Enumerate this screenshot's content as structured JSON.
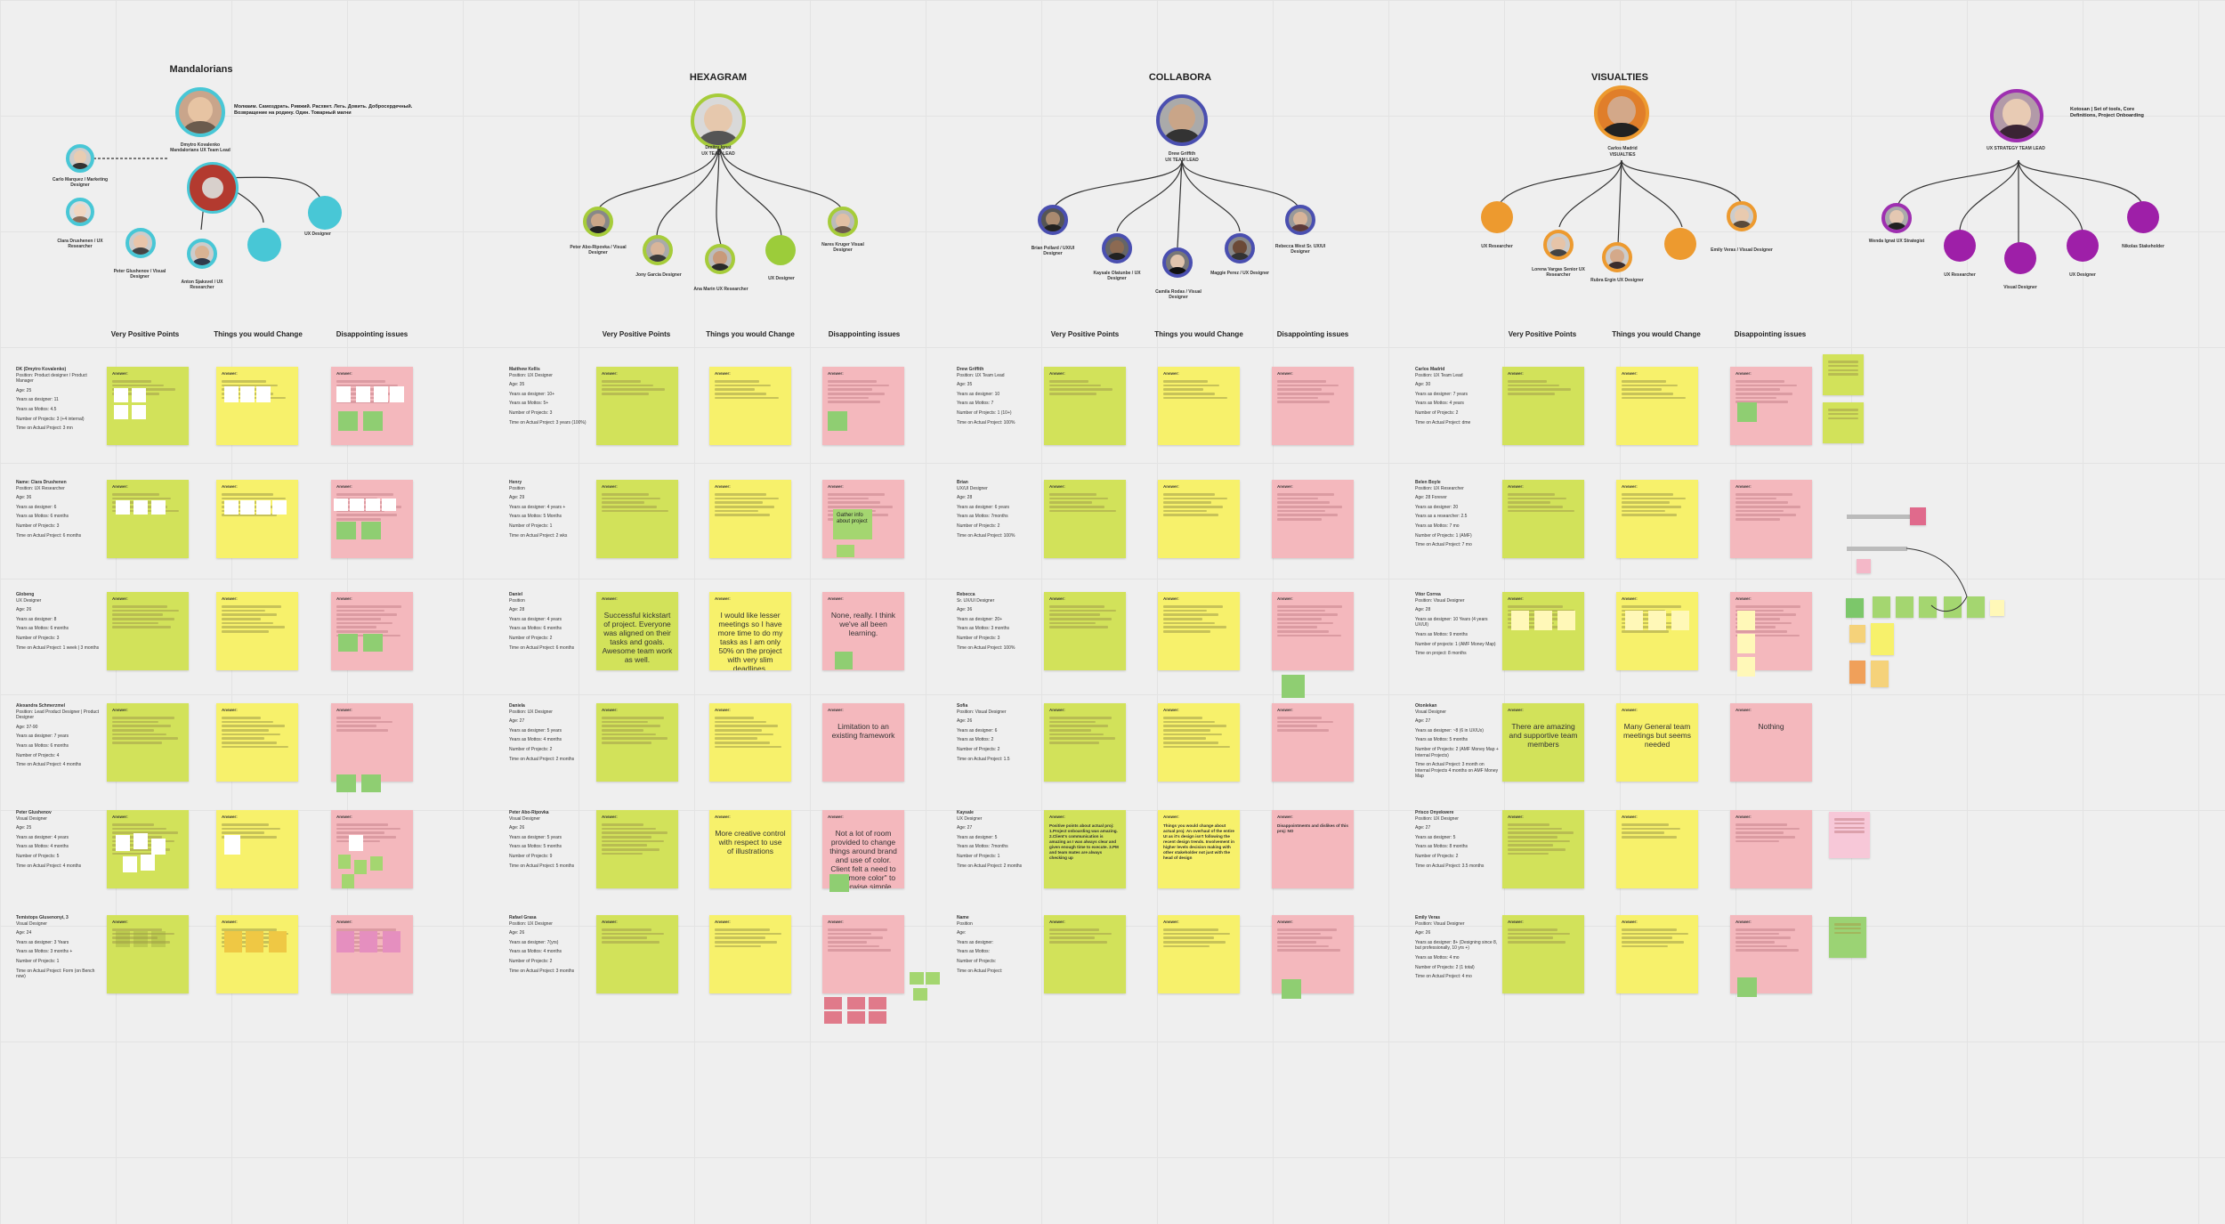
{
  "teams": [
    {
      "name": "Mandalorians",
      "lead_quote": "Молкаим. Самоздрать. Ривжий. Расхвет. Легь. Довить. Добросердечный. Возвращение на родину. Один. Товарный магни"
    },
    {
      "name": "HEXAGRAM",
      "lead": "Dmitry Ignat",
      "lead_role": "UX TEAM LEAD"
    },
    {
      "name": "COLLABORA",
      "lead": "Drew Griffith",
      "lead_role": "UX TEAM LEAD"
    },
    {
      "name": "VISUALTIES",
      "lead": "Carlos Madrid",
      "lead_role": "VISUALTIES"
    },
    {
      "name": "",
      "lead": "",
      "lead_role": "UX STRATEGY TEAM LEAD",
      "note": "Kotosan | Set of tools, Core Definitions, Project Onboarding"
    }
  ],
  "members": {
    "mandalorians": [
      "Dmytro Kovalenko Mandalorians UX Team Lead",
      "Carlo Marquez / Marketing Designer",
      "Clara Drushenen / UX Researcher",
      "Peter Glushenov / Visual Designer",
      "Anton Sjaksvel / UX Researcher",
      "UX Designer"
    ],
    "hexagram": [
      "Peter Abo-Ripovka / Visual Designer",
      "Jony Garcia Designer",
      "Ana Marin UX Researcher",
      "UX Designer",
      "Nares Kruger Visual Designer"
    ],
    "collabora": [
      "Brian Pollard / UX/UI Designer",
      "Kaysale Olatunbe / UX Designer",
      "Camila Rodas / Visual Designer",
      "Maggie Perez / UX Designer",
      "Rebecca West Sr. UX/UI Designer"
    ],
    "visualties": [
      "UX Researcher",
      "Lorena Vargas Senior UX Researcher",
      "Rubra Ergin UX Designer",
      "Emily Veras / Visual Designer"
    ],
    "strategy": [
      "Wenda Ignat UX Strategist",
      "UX Researcher",
      "Visual Designer",
      "UX Designer",
      "Nikolas Stakeholder"
    ]
  },
  "column_headers": [
    "Very Positive Points",
    "Things you would Change",
    "Disappointing issues"
  ],
  "answer_label": "Answer:",
  "people": {
    "mandalorians": [
      {
        "name": "DK (Dmytro Kovalenko)",
        "lines": [
          "Position: Product designer / Product Manager",
          "Age: 25",
          "Years as designer: 11",
          "Years as Mottos: 4.5",
          "Number of Projects: 3 (+4 internal)",
          "Time on Actual Project: 3 mn"
        ]
      },
      {
        "name": "Name: Clara Drushenen",
        "lines": [
          "Position: UX Researcher",
          "Age: 36",
          "Years as designer: 6",
          "Years as Mottos: 6 months",
          "Number of Projects: 3",
          "Time on Actual Project: 6 months"
        ]
      },
      {
        "name": "Globeng",
        "lines": [
          "UX Designer",
          "Age: 26",
          "Years as designer: 8",
          "Years as Mottos: 6 months",
          "Number of Projects: 3",
          "Time on Actual Project: 1 week | 3 months"
        ]
      },
      {
        "name": "Alexandra Schmerzmel",
        "lines": [
          "Position: Lead Product Designer | Product Designer",
          "Age: 37-90",
          "Years as designer: 7 years",
          "Years as Mottos: 6 months",
          "Number of Projects: 4",
          "Time on Actual Project: 4 months"
        ]
      },
      {
        "name": "Peter Glushenov",
        "lines": [
          "Visual Designer",
          "Age: 25",
          "Years as designer: 4 years",
          "Years as Mottos: 4 months",
          "Number of Projects: 5",
          "Time on Actual Project: 4 months"
        ]
      },
      {
        "name": "Temistops Glusenonyi, 3",
        "lines": [
          "Visual Designer",
          "Age: 24",
          "Years as designer: 3 Years",
          "Years as Mottos: 3 months +",
          "Number of Projects: 1",
          "Time on Actual Project: Form (on Bench now)"
        ]
      }
    ],
    "hexagram": [
      {
        "name": "Matthew Kellis",
        "lines": [
          "Position: UX Designer",
          "Age: 35",
          "Years as designer: 10+",
          "Years as Mottos: 5+",
          "Number of Projects: 3",
          "Time on Actual Project: 3 years (100%)"
        ]
      },
      {
        "name": "Henry",
        "lines": [
          "Position",
          "Age: 29",
          "Years as designer: 4 years +",
          "Years as Mottos: 5 Months",
          "Number of Projects: 1",
          "Time on Actual Project: 2 wks"
        ]
      },
      {
        "name": "Daniel",
        "lines": [
          "Position",
          "Age: 28",
          "Years as designer: 4 years",
          "Years as Mottos: 6 months",
          "Number of Projects: 2",
          "Time on Actual Project: 6 months"
        ]
      },
      {
        "name": "Daniela",
        "lines": [
          "Position: UX Designer",
          "Age: 27",
          "Years as designer: 5 years",
          "Years as Mottos: 4 months",
          "Number of Projects: 2",
          "Time on Actual Project: 2 months"
        ]
      },
      {
        "name": "Peter Abo-Ripovka",
        "lines": [
          "Visual Designer",
          "Age: 26",
          "Years as designer: 5 years",
          "Years as Mottos: 5 months",
          "Number of Projects: 9",
          "Time on Actual Project: 5 months"
        ]
      },
      {
        "name": "Rafael Grasa",
        "lines": [
          "Position: UX Designer",
          "Age: 26",
          "Years as designer: 7(yrs)",
          "Years as Mottos: 4 months",
          "Number of Projects: 2",
          "Time on Actual Project: 3 months"
        ]
      }
    ],
    "collabora": [
      {
        "name": "Drew Griffith",
        "lines": [
          "Position: UX Team Lead",
          "Age: 35",
          "Years as designer: 10",
          "Years as Mottos: 7",
          "Number of Projects: 1 (10+)",
          "Time on Actual Project: 100%"
        ]
      },
      {
        "name": "Brian",
        "lines": [
          "UX/UI Designer",
          "Age: 28",
          "Years as designer: 6 years",
          "Years as Mottos: 7months",
          "Number of Projects: 2",
          "Time on Actual Project: 100%"
        ]
      },
      {
        "name": "Rebecca",
        "lines": [
          "Sr. UX/UI Designer",
          "Age: 36",
          "Years as designer: 20+",
          "Years as Mottos: 3 months",
          "Number of Projects: 3",
          "Time on Actual Project: 100%"
        ]
      },
      {
        "name": "Sofia",
        "lines": [
          "Position: Visual Designer",
          "Age: 26",
          "Years as designer: 6",
          "Years as Mottos: 2",
          "Number of Projects: 2",
          "Time on Actual Project: 1.5"
        ]
      },
      {
        "name": "Kaysale",
        "lines": [
          "UX Designer",
          "Age: 27",
          "Years as designer: 5",
          "Years as Mottos: 7months",
          "Number of Projects: 1",
          "Time on Actual Project: 2 months"
        ]
      },
      {
        "name": "Name",
        "lines": [
          "Position",
          "Age:",
          "Years as designer:",
          "Years as Mottos:",
          "Number of Projects:",
          "Time on Actual Project:"
        ]
      }
    ],
    "visualties": [
      {
        "name": "Carlos Madrid",
        "lines": [
          "Position: UX Team Lead",
          "Age: 30",
          "Years as designer: 7 years",
          "Years as Mottos: 4 years",
          "Number of Projects: 2",
          "Time on Actual Project: dme"
        ]
      },
      {
        "name": "Belen Boyle",
        "lines": [
          "Position: UX Researcher",
          "Age: 28 Forever",
          "Years as designer: 20",
          "Years as a researcher: 2.5",
          "Years as Mottos: 7 mo",
          "Number of Projects: 1 (AMF)",
          "Time on Actual Project: 7 mo"
        ]
      },
      {
        "name": "Vitor Correa",
        "lines": [
          "Position: Visual Designer",
          "Age: 28",
          "Years as designer: 10 Years (4 years UX/UI)",
          "Years as Mottos: 9 months",
          "Number of projects: 1 (AMF Money Map)",
          "Time on project: 8 months"
        ]
      },
      {
        "name": "Otonlekan",
        "lines": [
          "Visual Designer",
          "Age: 27",
          "Years as designer: ~8 (6 in UX/Ux)",
          "Years as Mottos: 5 months",
          "Number of Projects: 2 (AMF Money Map + Internal Projects)",
          "Time on Actual Project: 3 month on Internal Projects 4 months on AMF Money Map"
        ]
      },
      {
        "name": "Prisco Onyekwere",
        "lines": [
          "Position: UX Designer",
          "Age: 27",
          "Years as designer: 5",
          "Years as Mottos: 8 months",
          "Number of Projects: 2",
          "Time on Actual Project: 3.5 months"
        ]
      },
      {
        "name": "Emily Veras",
        "lines": [
          "Position: Visual Designer",
          "Age: 26",
          "Years as designer: 8+ (Designing since 8, but professionally, 10 yrs +)",
          "Years as Mottos: 4 mo",
          "Number of Projects: 2 (1 total)",
          "Time on Actual Project: 4 mo"
        ]
      }
    ]
  },
  "sticky_texts": {
    "hex_r3_pos": "Successful kickstart of project. Everyone was aligned on their tasks and goals. Awesome team work as well.",
    "hex_r3_chg": "I would like lesser meetings so I have more time to do my tasks as I am only 50% on the project with very slim deadlines.",
    "hex_r3_dis": "None, really. I think we've all been learning.",
    "hex_r2_dis_note": "Gather info about project",
    "hex_r4_dis": "Limitation to an existing framework",
    "hex_r5_chg": "More creative control with respect to use of illustrations",
    "hex_r5_dis": "Not a lot of room provided to change things around brand and use of color. Client felt a need to \"add more color\" to otherwise simple pages",
    "vis_r4_pos": "There are amazing and supportive team members",
    "vis_r4_chg": "Many General team meetings but seems needed",
    "vis_r4_dis": "Nothing",
    "col_r5_pos": "Positive points about actual proj: 1.Project onboarding was amazing. 2.Client's communication is amazing as I was always clear and given enough time to execute. 3.PM and team mates are always checking up",
    "col_r5_chg": "Things you would change about actual proj: An overhaul of the entire UI as it's design isn't following the recent design trends. Involvement in higher levels decision making with other stakeholder not just with the head of design",
    "col_r5_dis": "Disappointments and dislikes of this proj: NO"
  }
}
